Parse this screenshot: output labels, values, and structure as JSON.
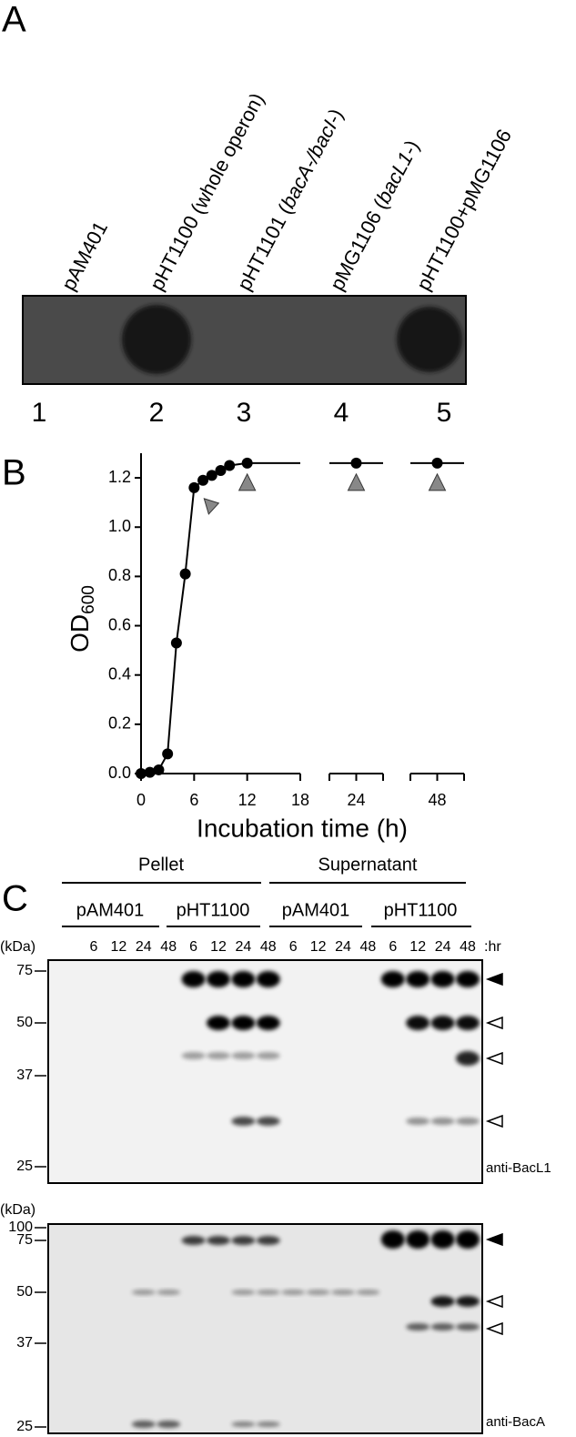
{
  "panel_a": {
    "label": "A",
    "strains": [
      [
        {
          "text": "pAM401"
        }
      ],
      [
        {
          "text": "pHT1100 (whole operon)"
        }
      ],
      [
        {
          "text": "pHT1101 ("
        },
        {
          "text": "bacA-/bacI-",
          "italic": true
        },
        {
          "text": ")"
        }
      ],
      [
        {
          "text": "pMG1106 ("
        },
        {
          "text": "bacL1-",
          "italic": true
        },
        {
          "text": ")"
        }
      ],
      [
        {
          "text": "pHT1100+pMG1106"
        }
      ]
    ],
    "lanes": [
      "1",
      "2",
      "3",
      "4",
      "5"
    ]
  },
  "chart_data": {
    "type": "line",
    "panel_label": "B",
    "ylabel": "OD",
    "ylabel_sub": "600",
    "xlabel": "Incubation time (h)",
    "x": [
      0,
      1,
      2,
      3,
      4,
      5,
      6,
      7,
      8,
      9,
      10,
      12,
      24,
      48
    ],
    "values": [
      0,
      0.005,
      0.015,
      0.08,
      0.53,
      0.81,
      1.16,
      1.19,
      1.21,
      1.23,
      1.25,
      1.26,
      1.26,
      1.26
    ],
    "color": "#000000",
    "marker_color": "#888888",
    "sample_x": [
      6,
      12,
      24,
      48
    ],
    "ylim": [
      0,
      1.3
    ],
    "yticks": [
      {
        "value": 0,
        "label": "0.0"
      },
      0.2,
      0.4,
      0.6,
      0.8,
      {
        "value": 1,
        "label": "1.0"
      },
      1.2
    ],
    "x_segments": [
      {
        "xlim": [
          0,
          18
        ],
        "xticks": [
          0,
          6,
          12,
          18
        ]
      },
      {
        "xlim": [
          21,
          27
        ],
        "xticks": [
          24
        ]
      },
      {
        "xlim": [
          45,
          51
        ],
        "xticks": [
          48
        ]
      }
    ]
  },
  "panel_c": {
    "label": "C",
    "fractions": [
      "Pellet",
      "Supernatant"
    ],
    "plasmids": [
      "pAM401",
      "pHT1100",
      "pAM401",
      "pHT1100"
    ],
    "times": [
      "6",
      "12",
      "24",
      "48"
    ],
    "time_unit": ":hr",
    "blots": [
      {
        "unit": "(kDa)",
        "markers": [
          "75",
          "50",
          "37",
          "25"
        ],
        "antibody": "anti-BacL1"
      },
      {
        "unit": "(kDa)",
        "markers": [
          "100",
          "75",
          "50",
          "37",
          "25"
        ],
        "antibody": "anti-BacA"
      }
    ]
  }
}
